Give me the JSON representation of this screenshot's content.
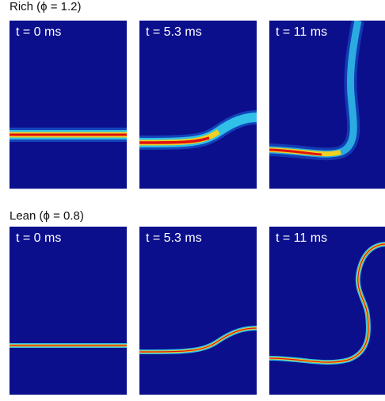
{
  "rows": [
    {
      "label": "Rich (ϕ = 1.2)",
      "mixture": "rich",
      "panels": [
        {
          "time": "t = 0 ms"
        },
        {
          "time": "t = 5.3 ms"
        },
        {
          "time": "t = 11 ms"
        }
      ]
    },
    {
      "label": "Lean (ϕ = 0.8)",
      "mixture": "lean",
      "panels": [
        {
          "time": "t = 0 ms"
        },
        {
          "time": "t = 5.3 ms"
        },
        {
          "time": "t = 11 ms"
        }
      ]
    }
  ],
  "colors": {
    "background": "#0c0f8c",
    "flame_core": "#e01010",
    "flame_mid": "#f0d020",
    "flame_outer": "#30c0e8",
    "label_text": "#ffffff"
  }
}
